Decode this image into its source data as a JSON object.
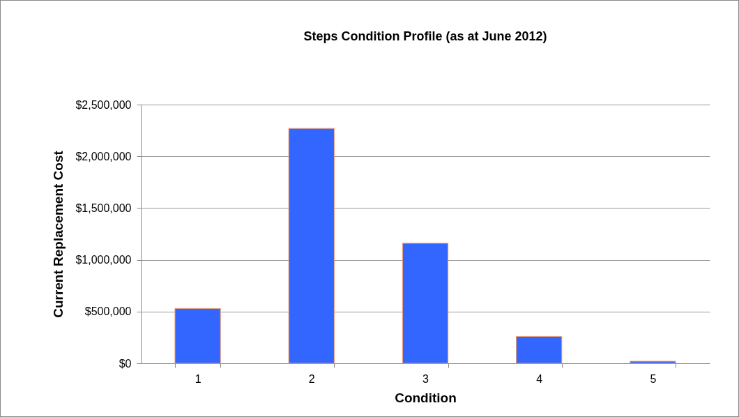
{
  "chart_data": {
    "type": "bar",
    "title": "Steps Condition Profile (as at June 2012)",
    "xlabel": "Condition",
    "ylabel": "Current Replacement Cost",
    "categories": [
      "1",
      "2",
      "3",
      "4",
      "5"
    ],
    "values": [
      530000,
      2270000,
      1160000,
      260000,
      20000
    ],
    "color": "#3366ff",
    "ylim": [
      0,
      2500000
    ],
    "yticks": [
      {
        "value": 0,
        "label": "$0"
      },
      {
        "value": 500000,
        "label": "$500,000"
      },
      {
        "value": 1000000,
        "label": "$1,000,000"
      },
      {
        "value": 1500000,
        "label": "$1,500,000"
      },
      {
        "value": 2000000,
        "label": "$2,000,000"
      },
      {
        "value": 2500000,
        "label": "$2,500,000"
      }
    ],
    "grid": "y"
  }
}
